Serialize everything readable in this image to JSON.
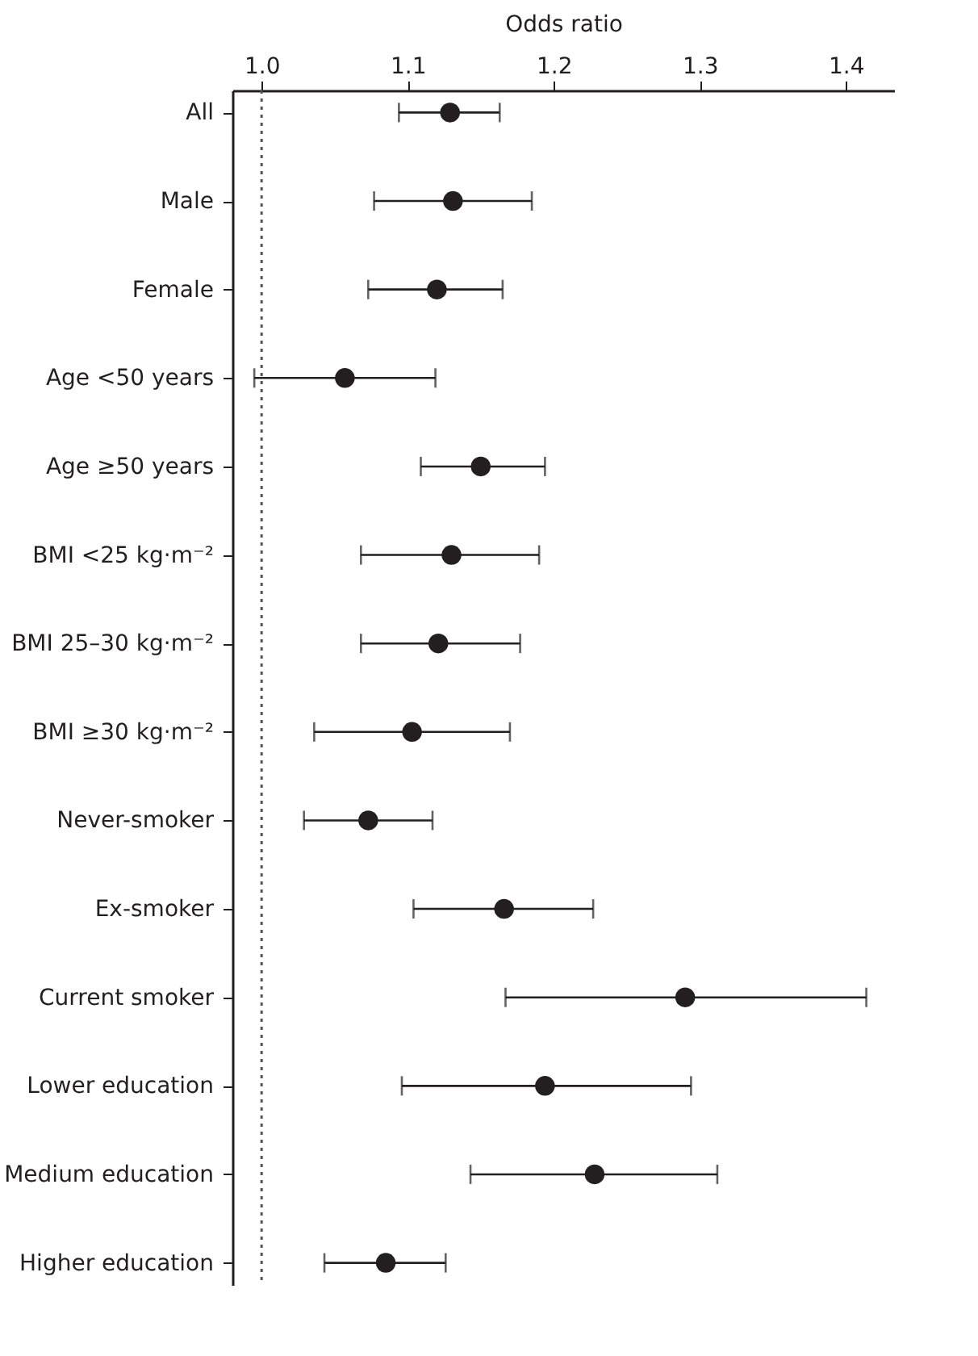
{
  "chart_data": {
    "type": "scatter",
    "orientation": "horizontal",
    "xlabel": "Odds ratio",
    "categories": [
      "All",
      "Male",
      "Female",
      "Age <50 years",
      "Age ≥50 years",
      "BMI <25 kg·m⁻²",
      "BMI 25–30 kg·m⁻²",
      "BMI ≥30 kg·m⁻²",
      "Never-smoker",
      "Ex-smoker",
      "Current smoker",
      "Lower education",
      "Medium education",
      "Higher education"
    ],
    "series": [
      {
        "color": "#231f20",
        "values": [
          1.129,
          1.131,
          1.12,
          1.057,
          1.15,
          1.13,
          1.121,
          1.103,
          1.073,
          1.166,
          1.29,
          1.194,
          1.228,
          1.085
        ],
        "errors": [
          [
            1.094,
            1.163
          ],
          [
            1.077,
            1.185
          ],
          [
            1.073,
            1.165
          ],
          [
            0.995,
            1.119
          ],
          [
            1.109,
            1.194
          ],
          [
            1.068,
            1.19
          ],
          [
            1.068,
            1.177
          ],
          [
            1.036,
            1.17
          ],
          [
            1.029,
            1.117
          ],
          [
            1.104,
            1.227
          ],
          [
            1.167,
            1.414
          ],
          [
            1.096,
            1.294
          ],
          [
            1.143,
            1.312
          ],
          [
            1.043,
            1.126
          ]
        ]
      }
    ],
    "xlim": [
      0.98,
      1.433
    ],
    "xticks": [
      {
        "value": 1.0,
        "label": "1.0"
      },
      1.1,
      1.2,
      1.3,
      1.4
    ],
    "ref_lines": [
      {
        "axis": "x",
        "value": 1.0,
        "color": "#555555",
        "line_style": "dotted"
      }
    ],
    "marker": "circle",
    "grid": false
  }
}
